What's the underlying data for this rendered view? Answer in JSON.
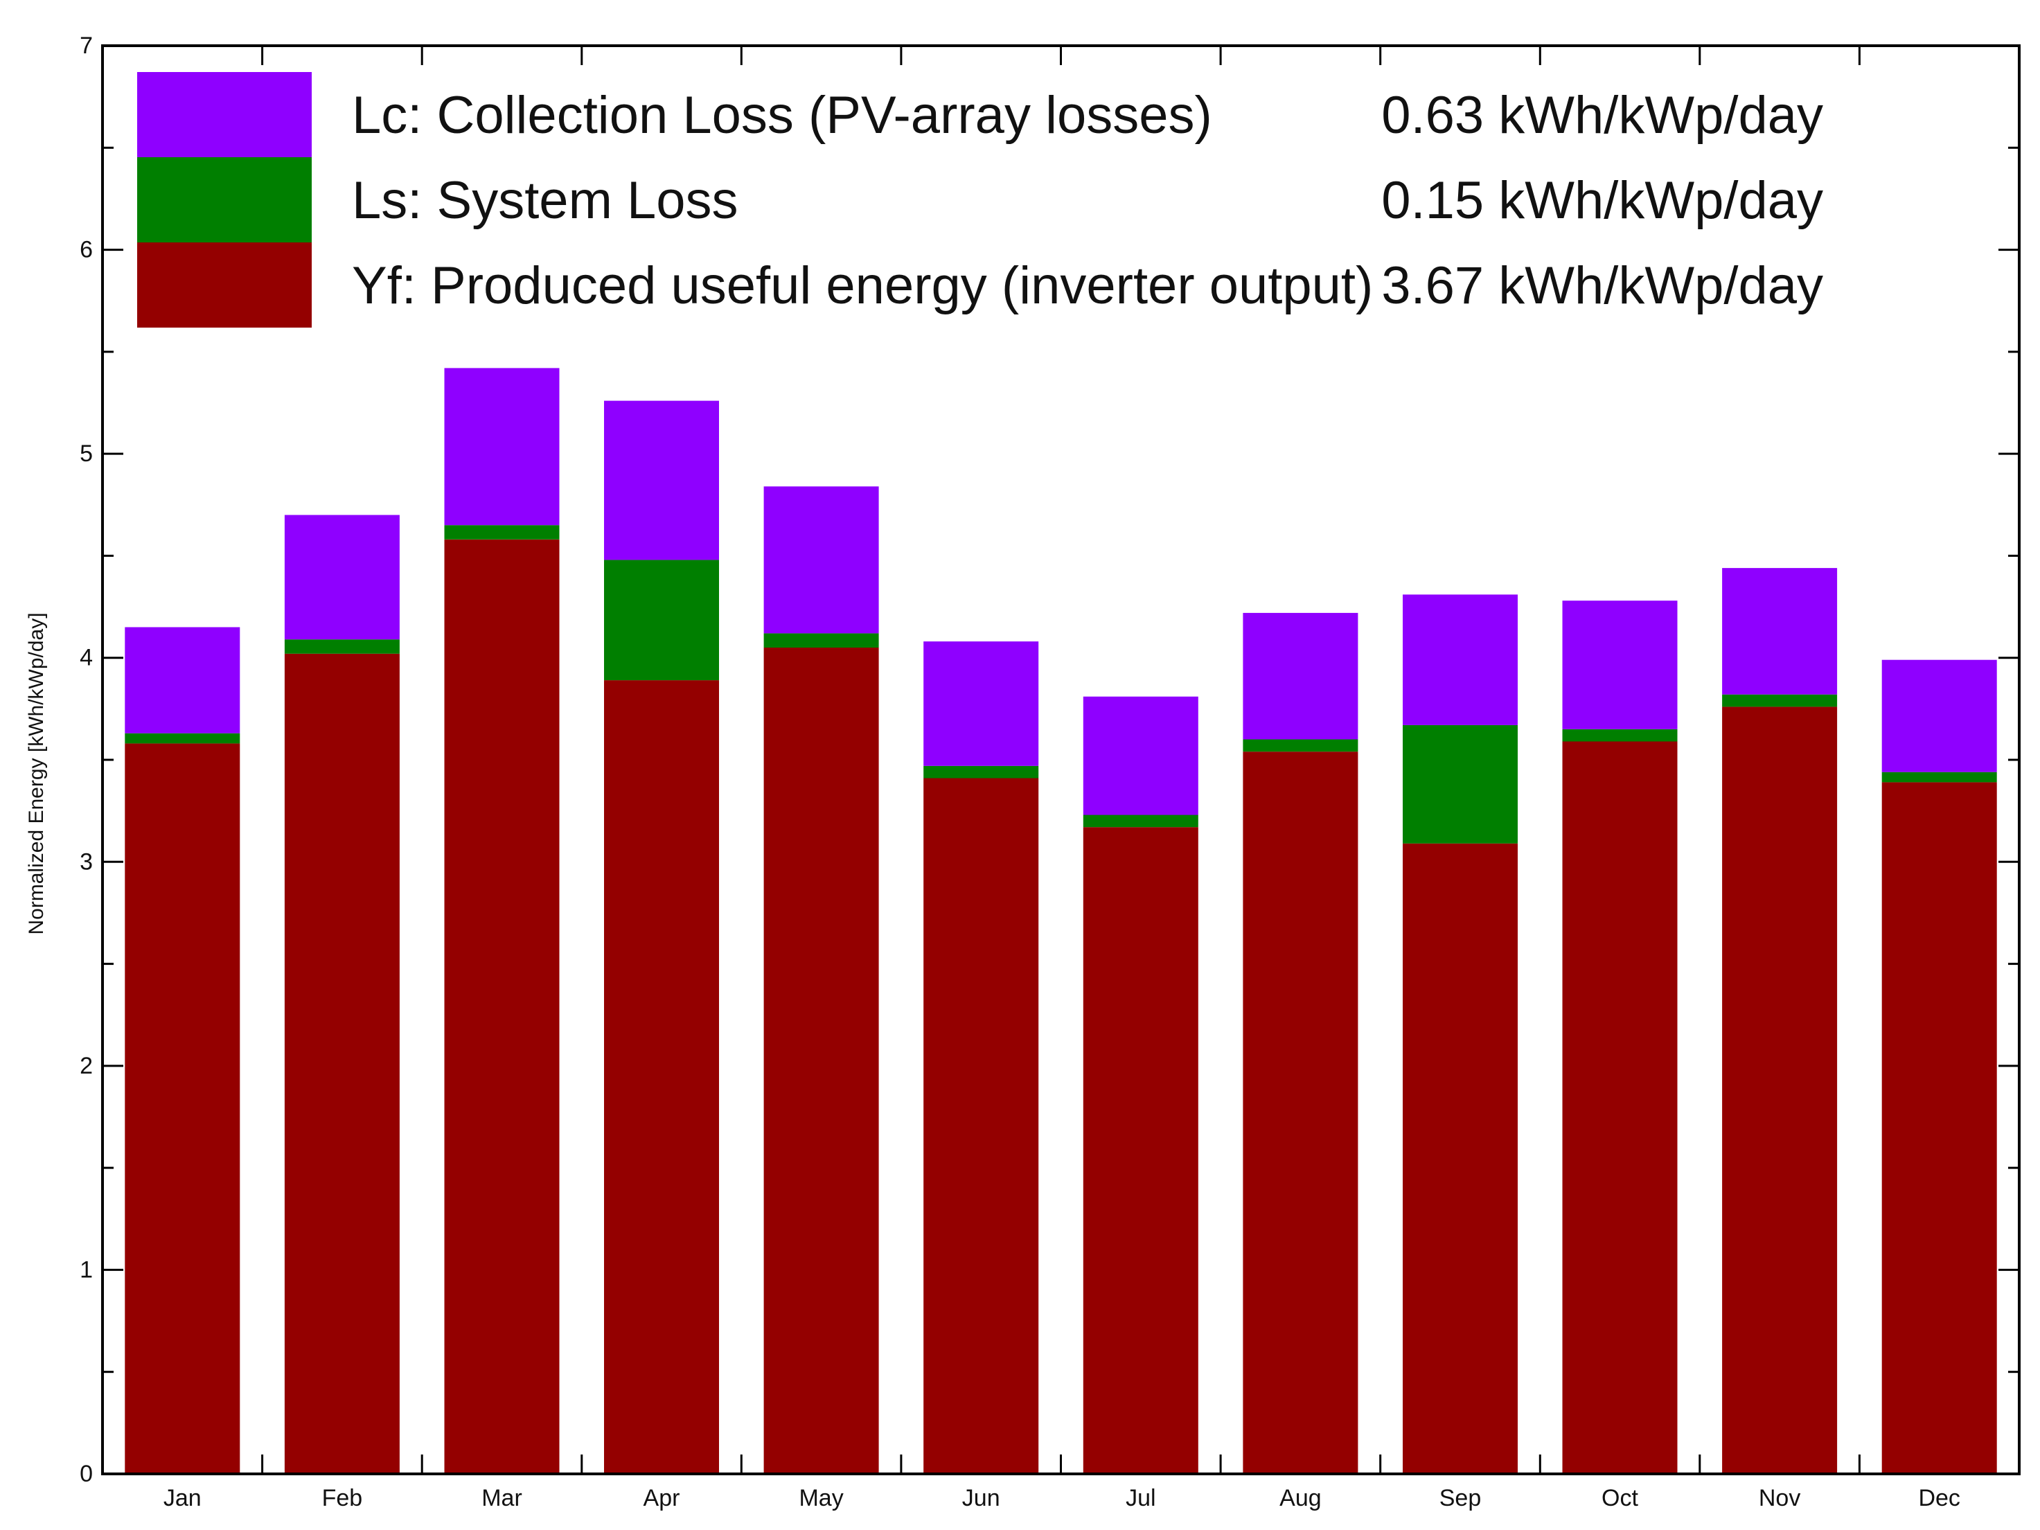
{
  "chart_data": {
    "type": "bar",
    "stacked": true,
    "title": "",
    "xlabel": "",
    "ylabel": "Normalized  Energy  [kWh/kWp/day]",
    "ylim": [
      0,
      7
    ],
    "yticks": [
      "0",
      "1",
      "2",
      "3",
      "4",
      "5",
      "6",
      "7"
    ],
    "categories": [
      "Jan",
      "Feb",
      "Mar",
      "Apr",
      "May",
      "Jun",
      "Jul",
      "Aug",
      "Sep",
      "Oct",
      "Nov",
      "Dec"
    ],
    "series": [
      {
        "name": "Yf",
        "color": "#940000",
        "values": [
          3.58,
          4.02,
          4.58,
          3.89,
          4.05,
          3.41,
          3.17,
          3.54,
          3.09,
          3.59,
          3.76,
          3.39
        ]
      },
      {
        "name": "Ls",
        "color": "#007f00",
        "values": [
          0.05,
          0.07,
          0.07,
          0.59,
          0.07,
          0.06,
          0.06,
          0.06,
          0.58,
          0.06,
          0.06,
          0.05
        ]
      },
      {
        "name": "Lc",
        "color": "#8f00ff",
        "values": [
          0.52,
          0.61,
          0.77,
          0.78,
          0.72,
          0.61,
          0.58,
          0.62,
          0.64,
          0.63,
          0.62,
          0.55
        ]
      }
    ],
    "legend": [
      {
        "swatch_color": "#8f00ff",
        "label": "Lc: Collection Loss (PV-array losses)",
        "value": "0.63 kWh/kWp/day"
      },
      {
        "swatch_color": "#007f00",
        "label": "Ls: System Loss",
        "value": "0.15 kWh/kWp/day"
      },
      {
        "swatch_color": "#940000",
        "label": "Yf: Produced useful energy  (inverter output)",
        "value": "3.67 kWh/kWp/day"
      }
    ],
    "legend_position": "top",
    "grid": false
  }
}
